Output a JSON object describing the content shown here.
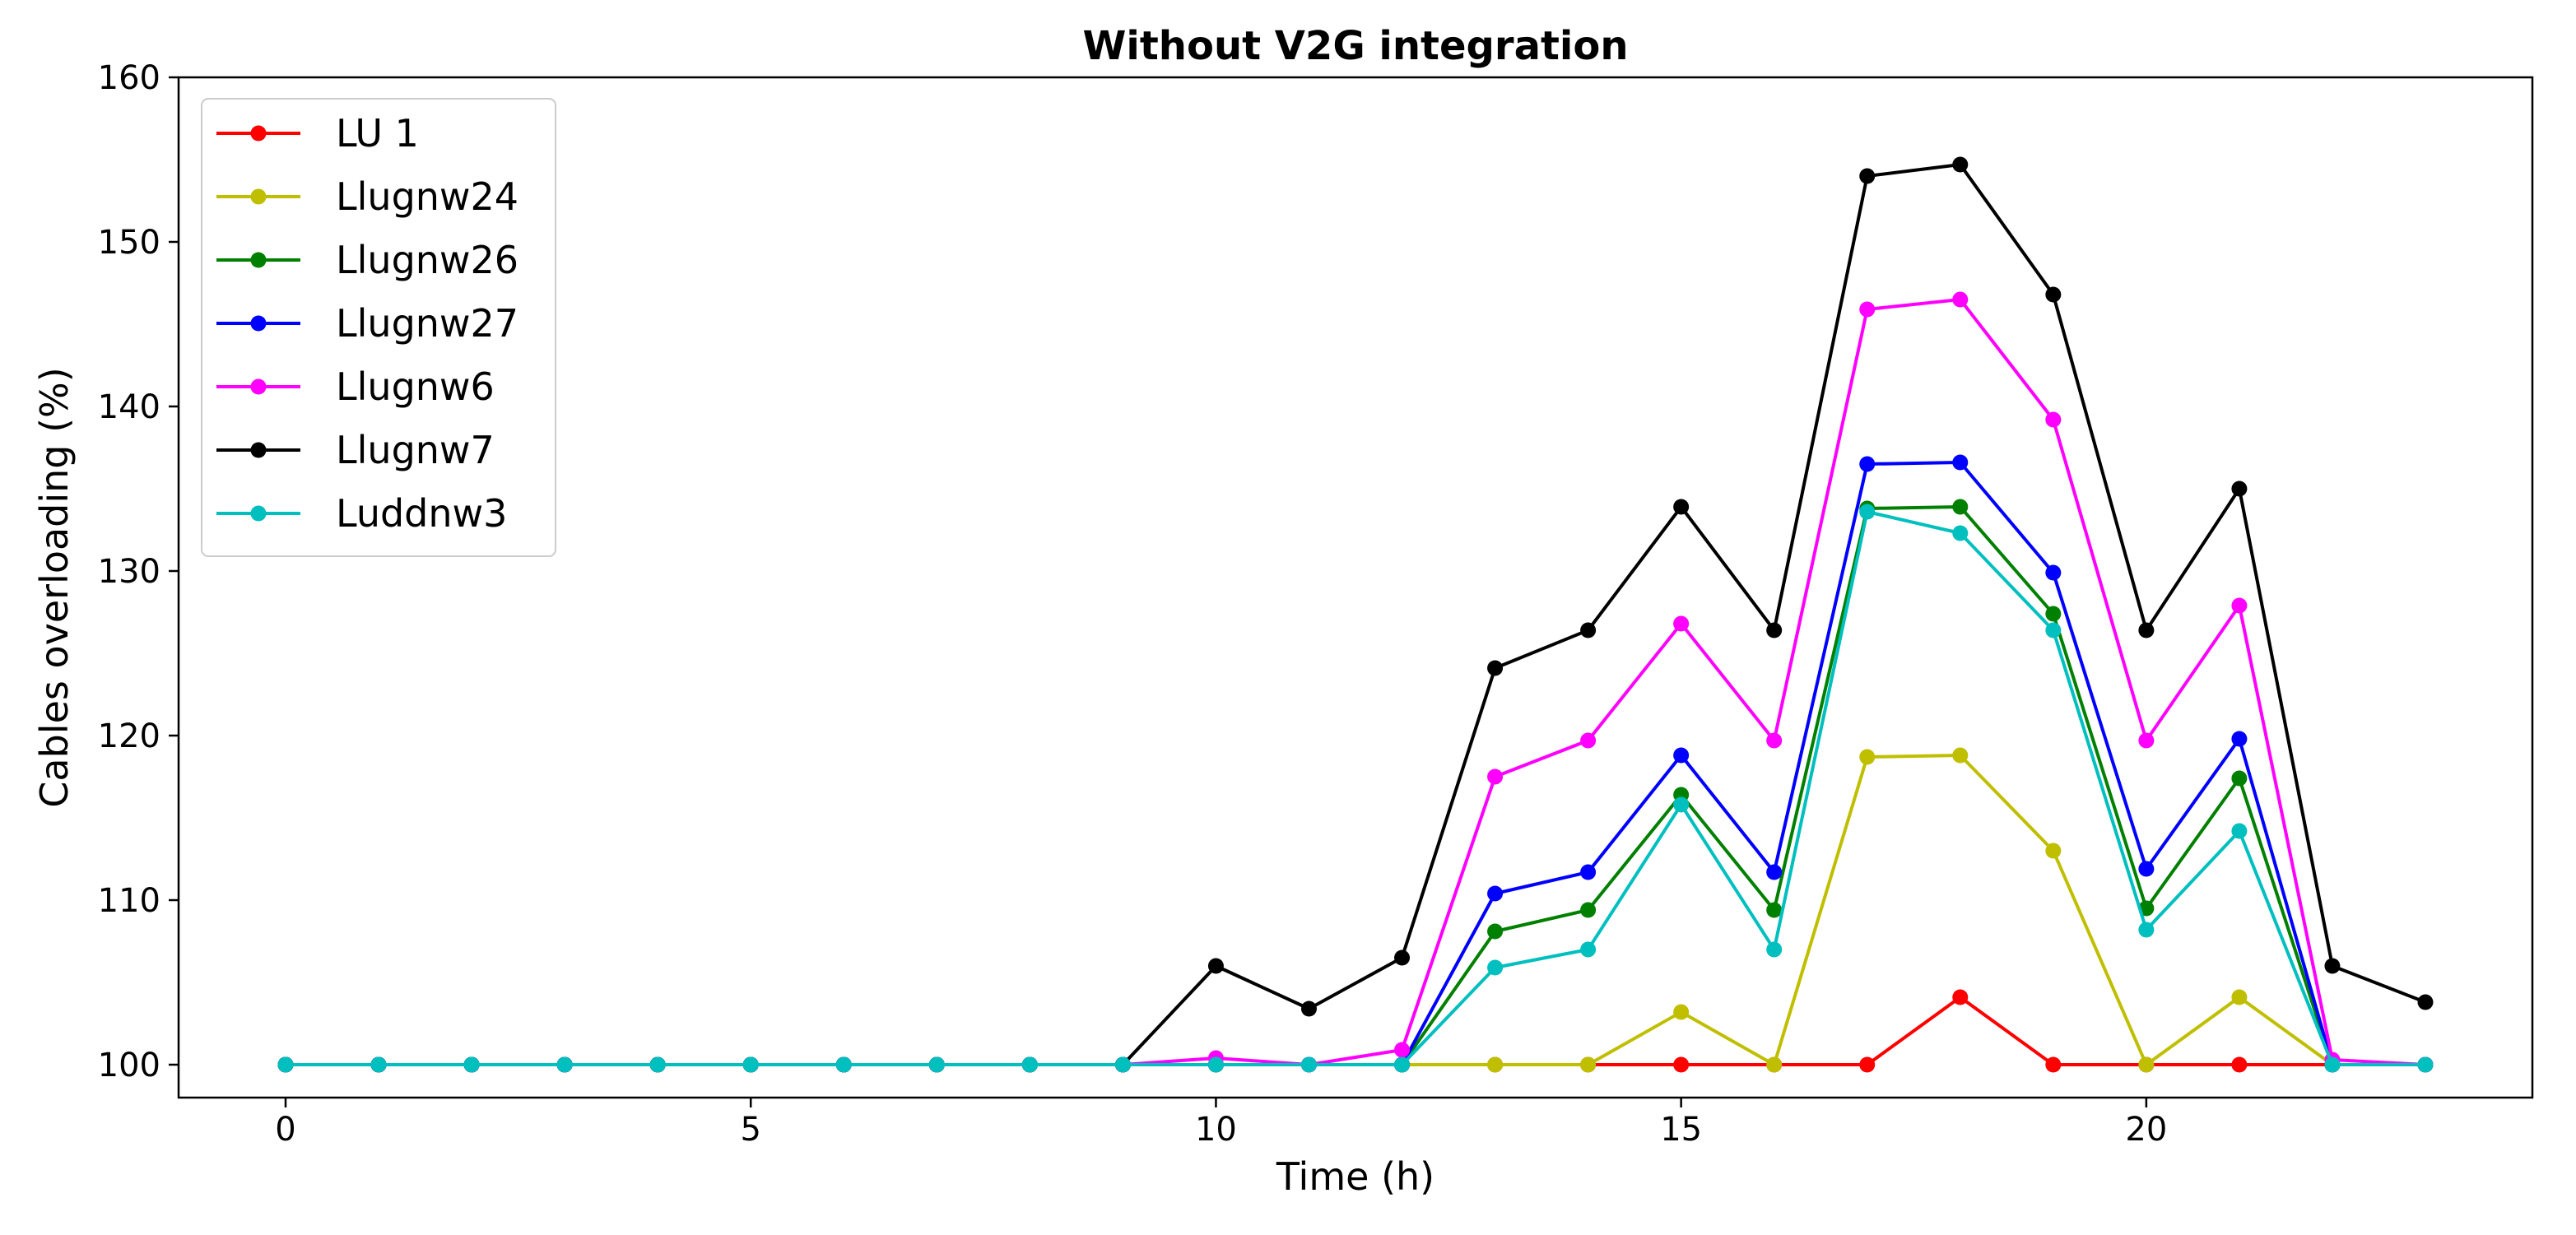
{
  "chart_data": {
    "type": "line",
    "title": "Without V2G integration",
    "xlabel": "Time (h)",
    "ylabel": "Cables overloading (%)",
    "xlim": [
      -1.15,
      24.15
    ],
    "ylim": [
      98,
      160
    ],
    "xticks": [
      0,
      5,
      10,
      15,
      20
    ],
    "yticks": [
      100,
      110,
      120,
      130,
      140,
      150,
      160
    ],
    "grid": false,
    "legend_position": "top-left",
    "x": [
      0,
      1,
      2,
      3,
      4,
      5,
      6,
      7,
      8,
      9,
      10,
      11,
      12,
      13,
      14,
      15,
      16,
      17,
      18,
      19,
      20,
      21,
      22,
      23
    ],
    "series": [
      {
        "name": "LU 1",
        "color": "#ff0000",
        "values": [
          100,
          100,
          100,
          100,
          100,
          100,
          100,
          100,
          100,
          100,
          100,
          100,
          100,
          100,
          100,
          100,
          100,
          100,
          104.1,
          100,
          100,
          100,
          100,
          100
        ]
      },
      {
        "name": "Llugnw24",
        "color": "#bfbf00",
        "values": [
          100,
          100,
          100,
          100,
          100,
          100,
          100,
          100,
          100,
          100,
          100,
          100,
          100,
          100,
          100,
          103.2,
          100,
          118.7,
          118.8,
          113,
          100,
          104.1,
          100,
          100
        ]
      },
      {
        "name": "Llugnw26",
        "color": "#008000",
        "values": [
          100,
          100,
          100,
          100,
          100,
          100,
          100,
          100,
          100,
          100,
          100,
          100,
          100,
          108.1,
          109.4,
          116.4,
          109.4,
          133.8,
          133.9,
          127.4,
          109.5,
          117.4,
          100,
          100
        ]
      },
      {
        "name": "Llugnw27",
        "color": "#0000ff",
        "values": [
          100,
          100,
          100,
          100,
          100,
          100,
          100,
          100,
          100,
          100,
          100,
          100,
          100,
          110.4,
          111.7,
          118.8,
          111.7,
          136.5,
          136.6,
          129.9,
          111.9,
          119.8,
          100,
          100
        ]
      },
      {
        "name": "Llugnw6",
        "color": "#ff00ff",
        "values": [
          100,
          100,
          100,
          100,
          100,
          100,
          100,
          100,
          100,
          100,
          100.4,
          100,
          100.9,
          117.5,
          119.7,
          126.8,
          119.7,
          145.9,
          146.5,
          139.2,
          119.7,
          127.9,
          100.3,
          100
        ]
      },
      {
        "name": "Llugnw7",
        "color": "#000000",
        "values": [
          100,
          100,
          100,
          100,
          100,
          100,
          100,
          100,
          100,
          100,
          106,
          103.4,
          106.5,
          124.1,
          126.4,
          133.9,
          126.4,
          154,
          154.7,
          146.8,
          126.4,
          135,
          106,
          103.8
        ]
      },
      {
        "name": "Luddnw3",
        "color": "#00bfbf",
        "values": [
          100,
          100,
          100,
          100,
          100,
          100,
          100,
          100,
          100,
          100,
          100,
          100,
          100,
          105.9,
          107,
          115.8,
          107,
          133.6,
          132.3,
          126.4,
          108.2,
          114.2,
          100,
          100
        ]
      }
    ]
  }
}
